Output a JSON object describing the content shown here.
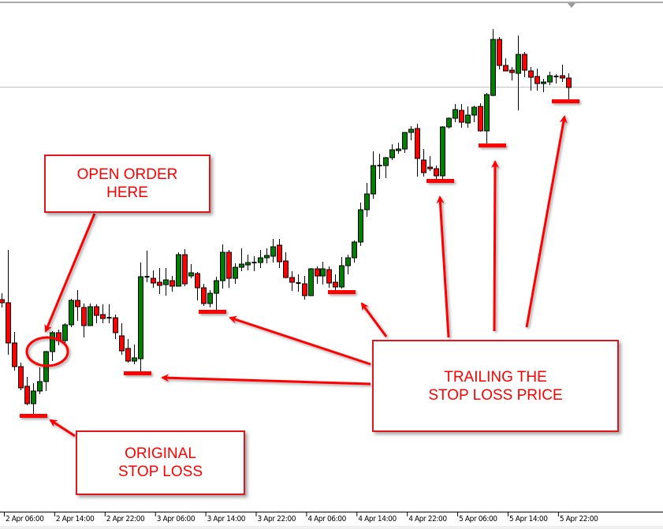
{
  "chart_data": {
    "type": "candlestick",
    "title": "",
    "xlabel": "",
    "ylabel": "",
    "x_tick_labels": [
      "2 Apr 06:00",
      "2 Apr 14:00",
      "2 Apr 22:00",
      "3 Apr 06:00",
      "3 Apr 14:00",
      "3 Apr 22:00",
      "4 Apr 06:00",
      "4 Apr 14:00",
      "4 Apr 22:00",
      "5 Apr 06:00",
      "5 Apr 14:00",
      "5 Apr 22:00"
    ],
    "candle_fields": [
      "open",
      "high",
      "low",
      "close"
    ],
    "candles": [
      [
        270,
        278,
        260,
        266
      ],
      [
        266,
        333,
        200,
        215
      ],
      [
        215,
        229,
        180,
        185
      ],
      [
        185,
        190,
        155,
        158
      ],
      [
        160,
        172,
        136,
        138
      ],
      [
        138,
        164,
        125,
        154
      ],
      [
        154,
        184,
        150,
        166
      ],
      [
        166,
        205,
        154,
        204
      ],
      [
        204,
        230,
        192,
        228
      ],
      [
        228,
        232,
        212,
        218
      ],
      [
        218,
        240,
        212,
        238
      ],
      [
        238,
        271,
        235,
        269
      ],
      [
        269,
        282,
        243,
        261
      ],
      [
        260,
        265,
        222,
        237
      ],
      [
        237,
        265,
        237,
        261
      ],
      [
        261,
        264,
        240,
        250
      ],
      [
        251,
        264,
        240,
        246
      ],
      [
        247,
        264,
        240,
        247
      ],
      [
        247,
        251,
        220,
        228
      ],
      [
        224,
        240,
        200,
        205
      ],
      [
        208,
        220,
        190,
        192
      ],
      [
        192,
        213,
        188,
        196
      ],
      [
        195,
        317,
        179,
        299
      ],
      [
        298,
        332,
        292,
        299
      ],
      [
        297,
        307,
        285,
        291
      ],
      [
        292,
        310,
        277,
        288
      ],
      [
        289,
        310,
        275,
        295
      ],
      [
        294,
        300,
        280,
        287
      ],
      [
        287,
        330,
        287,
        327
      ],
      [
        327,
        334,
        287,
        290
      ],
      [
        300,
        315,
        297,
        304
      ],
      [
        303,
        305,
        269,
        285
      ],
      [
        285,
        290,
        262,
        265
      ],
      [
        265,
        282,
        260,
        278
      ],
      [
        278,
        299,
        257,
        294
      ],
      [
        294,
        340,
        284,
        330
      ],
      [
        330,
        333,
        285,
        297
      ],
      [
        297,
        316,
        290,
        311
      ],
      [
        311,
        335,
        306,
        315
      ],
      [
        314,
        327,
        307,
        317
      ],
      [
        316,
        325,
        306,
        317
      ],
      [
        317,
        333,
        310,
        323
      ],
      [
        323,
        335,
        316,
        326
      ],
      [
        325,
        347,
        317,
        337
      ],
      [
        339,
        347,
        310,
        318
      ],
      [
        319,
        330,
        297,
        298
      ],
      [
        298,
        306,
        281,
        292
      ],
      [
        291,
        302,
        280,
        290
      ],
      [
        290,
        300,
        270,
        275
      ],
      [
        275,
        310,
        275,
        309
      ],
      [
        309,
        312,
        290,
        300
      ],
      [
        300,
        318,
        289,
        309
      ],
      [
        308,
        312,
        285,
        291
      ],
      [
        292,
        302,
        282,
        286
      ],
      [
        286,
        324,
        284,
        313
      ],
      [
        313,
        327,
        302,
        323
      ],
      [
        323,
        345,
        317,
        343
      ],
      [
        343,
        393,
        338,
        384
      ],
      [
        384,
        418,
        375,
        404
      ],
      [
        404,
        458,
        398,
        440
      ],
      [
        439,
        455,
        423,
        440
      ],
      [
        440,
        451,
        424,
        450
      ],
      [
        450,
        467,
        447,
        460
      ],
      [
        459,
        469,
        455,
        461
      ],
      [
        461,
        482,
        456,
        482
      ],
      [
        482,
        490,
        472,
        486
      ],
      [
        487,
        493,
        426,
        449
      ],
      [
        447,
        461,
        426,
        431
      ],
      [
        438,
        452,
        433,
        436
      ],
      [
        436,
        440,
        423,
        427
      ],
      [
        427,
        490,
        422,
        489
      ],
      [
        489,
        501,
        487,
        500
      ],
      [
        500,
        518,
        495,
        511
      ],
      [
        510,
        518,
        488,
        495
      ],
      [
        494,
        515,
        488,
        504
      ],
      [
        504,
        516,
        495,
        514
      ],
      [
        515,
        519,
        483,
        484
      ],
      [
        484,
        532,
        467,
        530
      ],
      [
        529,
        613,
        528,
        600
      ],
      [
        600,
        603,
        562,
        567
      ],
      [
        567,
        576,
        560,
        560
      ],
      [
        561,
        565,
        548,
        558
      ],
      [
        557,
        605,
        510,
        581
      ],
      [
        581,
        584,
        552,
        561
      ],
      [
        560,
        565,
        535,
        552
      ],
      [
        553,
        563,
        535,
        544
      ],
      [
        544,
        550,
        533,
        546
      ],
      [
        546,
        559,
        542,
        554
      ],
      [
        553,
        556,
        544,
        553
      ],
      [
        554,
        568,
        546,
        551
      ],
      [
        551,
        557,
        523,
        539
      ]
    ],
    "reference_line": 540,
    "stop_loss_levels": [
      123,
      177,
      255,
      280,
      421,
      466,
      522
    ],
    "colors": {
      "bull": "#008000",
      "bear": "#ff0000",
      "wick": "#000000",
      "stop_marker": "#ff0000",
      "reference_line": "#c0c0c0"
    },
    "grid": false,
    "legend": "none"
  },
  "annotations": {
    "open_order": [
      "OPEN ORDER",
      "HERE"
    ],
    "original_stop": [
      "ORIGINAL",
      "STOP LOSS"
    ],
    "trailing": [
      "TRAILING THE",
      "STOP LOSS PRICE"
    ]
  }
}
